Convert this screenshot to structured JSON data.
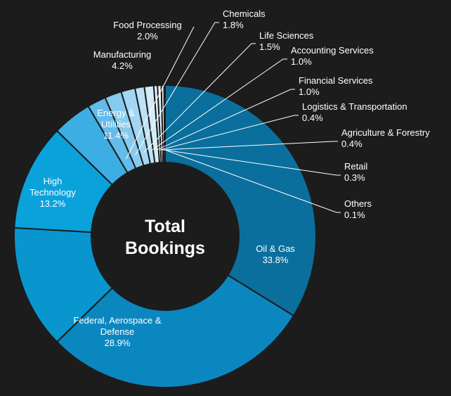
{
  "chart_data": {
    "type": "pie",
    "title": "Total Bookings",
    "title_lines": [
      "Total",
      "Bookings"
    ],
    "slices": [
      {
        "name": "Oil & Gas",
        "label_lines": [
          "Oil & Gas"
        ],
        "value_label": "33.8%",
        "value": 33.8,
        "color": "#0a6f9c"
      },
      {
        "name": "Federal, Aerospace & Defense",
        "label_lines": [
          "Federal,  Aerospace &",
          "Defense"
        ],
        "value_label": "28.9%",
        "value": 28.9,
        "color": "#0b87c0"
      },
      {
        "name": "High Technology",
        "label_lines": [
          "High",
          "Technology"
        ],
        "value_label": "13.2%",
        "value": 13.2,
        "color": "#0996cf"
      },
      {
        "name": "Energy & Utilities",
        "label_lines": [
          "Energy &",
          "Utilities"
        ],
        "value_label": "11.4%",
        "value": 11.4,
        "color": "#0aa2db"
      },
      {
        "name": "Manufacturing",
        "label_lines": [
          "Manufacturing"
        ],
        "value_label": "4.2%",
        "value": 4.2,
        "color": "#3caee3"
      },
      {
        "name": "Food Processing",
        "label_lines": [
          "Food Processing"
        ],
        "value_label": "2.0%",
        "value": 2.0,
        "color": "#63bce9"
      },
      {
        "name": "Chemicals",
        "label_lines": [
          "Chemicals"
        ],
        "value_label": "1.8%",
        "value": 1.8,
        "color": "#86cbef"
      },
      {
        "name": "Life Sciences",
        "label_lines": [
          "Life Sciences"
        ],
        "value_label": "1.5%",
        "value": 1.5,
        "color": "#a2d7f3"
      },
      {
        "name": "Accounting Services",
        "label_lines": [
          "Accounting Services"
        ],
        "value_label": "1.0%",
        "value": 1.0,
        "color": "#bde2f6"
      },
      {
        "name": "Financial Services",
        "label_lines": [
          "Financial Services"
        ],
        "value_label": "1.0%",
        "value": 1.0,
        "color": "#d3ecf9"
      },
      {
        "name": "Logistics & Transportation",
        "label_lines": [
          "Logistics & Transportation"
        ],
        "value_label": "0.4%",
        "value": 0.4,
        "color": "#e4f3fb"
      },
      {
        "name": "Agriculture & Forestry",
        "label_lines": [
          "Agriculture & Forestry"
        ],
        "value_label": "0.4%",
        "value": 0.4,
        "color": "#eef8fd"
      },
      {
        "name": "Retail",
        "label_lines": [
          "Retail"
        ],
        "value_label": "0.3%",
        "value": 0.3,
        "color": "#f5fbfe"
      },
      {
        "name": "Others",
        "label_lines": [
          "Others"
        ],
        "value_label": "0.1%",
        "value": 0.1,
        "color": "#ffffff"
      }
    ],
    "start": "top, clockwise",
    "background": "#1c1c1c",
    "separator_color": "#1c1c1c"
  }
}
